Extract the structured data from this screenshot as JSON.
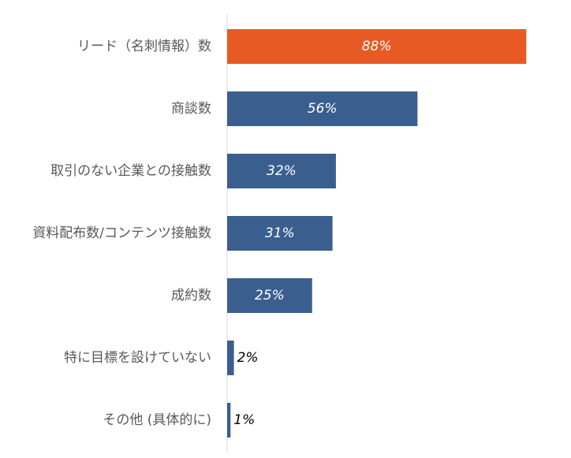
{
  "chart_data": {
    "type": "bar",
    "orientation": "horizontal",
    "categories": [
      "リード（名刺情報）数",
      "商談数",
      "取引のない企業との接触数",
      "資料配布数/コンテンツ接触数",
      "成約数",
      "特に目標を設けていない",
      "その他 (具体的に)"
    ],
    "values": [
      88,
      56,
      32,
      31,
      25,
      2,
      1
    ],
    "value_labels": [
      "88%",
      "56%",
      "32%",
      "31%",
      "25%",
      "2%",
      "1%"
    ],
    "xlim": [
      0,
      100
    ],
    "highlight_index": 0,
    "grid": false,
    "legend": "none",
    "colors": {
      "highlight": "#E85A24",
      "bar": "#3A5F8F",
      "axis": "#D9D9D9",
      "label_inside": "#FFFFFF",
      "label_outside": "#000000"
    }
  }
}
